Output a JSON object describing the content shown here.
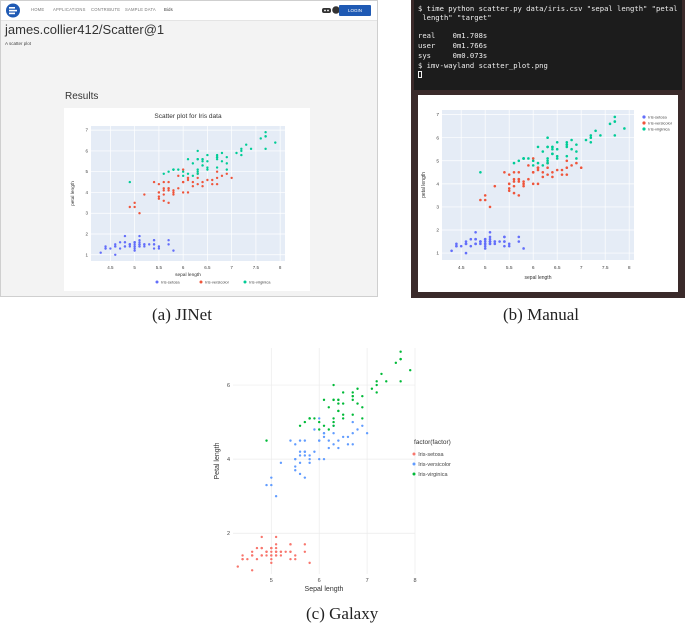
{
  "panel_a": {
    "nav": {
      "items": [
        "HOME",
        "APPLICATIONS",
        "CONTRIBUTE",
        "SAMPLE DATA",
        "Bids"
      ],
      "login_label": "LOGIN"
    },
    "title": "james.collier412/Scatter@1",
    "subtitle": "A scatter plot",
    "results_heading": "Results",
    "caption": "(a) JINet"
  },
  "panel_b": {
    "terminal_lines": [
      "$ time python scatter.py data/iris.csv \"sepal length\" \"petal",
      " length\" \"target\"",
      "",
      "real    0m1.708s",
      "user    0m1.766s",
      "sys     0m0.073s",
      "$ imv-wayland scatter_plot.png"
    ],
    "caption": "(b) Manual"
  },
  "panel_c": {
    "caption": "(c) Galaxy"
  },
  "chart_data": [
    {
      "id": "jinet",
      "type": "scatter",
      "title": "Scatter plot for Iris data",
      "xlabel": "sepal length",
      "ylabel": "petal length",
      "xlim": [
        4.1,
        8.1
      ],
      "ylim": [
        0.7,
        7.2
      ],
      "xticks": [
        4.5,
        5,
        5.5,
        6,
        6.5,
        7,
        7.5,
        8
      ],
      "yticks": [
        1,
        2,
        3,
        4,
        5,
        6,
        7
      ],
      "legend_position": "bottom",
      "series": [
        {
          "name": "Iris-setosa",
          "color": "#636efa"
        },
        {
          "name": "Iris-versicolor",
          "color": "#ef553b"
        },
        {
          "name": "Iris-virginica",
          "color": "#00cc96"
        }
      ]
    },
    {
      "id": "manual",
      "type": "scatter",
      "title": "",
      "xlabel": "sepal length",
      "ylabel": "petal length",
      "xlim": [
        4.1,
        8.1
      ],
      "ylim": [
        0.7,
        7.2
      ],
      "xticks": [
        4.5,
        5,
        5.5,
        6,
        6.5,
        7,
        7.5,
        8
      ],
      "yticks": [
        1,
        2,
        3,
        4,
        5,
        6,
        7
      ],
      "legend_position": "top-right",
      "series": [
        {
          "name": "Iris-setosa",
          "color": "#636efa"
        },
        {
          "name": "Iris-versicolor",
          "color": "#ef553b"
        },
        {
          "name": "Iris-virginica",
          "color": "#00cc96"
        }
      ]
    },
    {
      "id": "galaxy",
      "type": "scatter",
      "title": "",
      "xlabel": "Sepal length",
      "ylabel": "Petal length",
      "xlim": [
        4.2,
        8.0
      ],
      "ylim": [
        0.9,
        7.0
      ],
      "xticks": [
        5,
        6,
        7,
        8
      ],
      "yticks": [
        2,
        4,
        6
      ],
      "legend_title": "factor(factor)",
      "legend_position": "right",
      "series": [
        {
          "name": "Iris-setosa",
          "color": "#f8766d"
        },
        {
          "name": "Iris-versicolor",
          "color": "#619cff"
        },
        {
          "name": "Iris-virginica",
          "color": "#00ba38"
        }
      ]
    }
  ],
  "iris": {
    "setosa": [
      [
        5.1,
        1.4
      ],
      [
        4.9,
        1.4
      ],
      [
        4.7,
        1.3
      ],
      [
        4.6,
        1.5
      ],
      [
        5.0,
        1.4
      ],
      [
        5.4,
        1.7
      ],
      [
        4.6,
        1.4
      ],
      [
        5.0,
        1.5
      ],
      [
        4.4,
        1.4
      ],
      [
        4.9,
        1.5
      ],
      [
        5.4,
        1.5
      ],
      [
        4.8,
        1.6
      ],
      [
        4.8,
        1.4
      ],
      [
        4.3,
        1.1
      ],
      [
        5.8,
        1.2
      ],
      [
        5.7,
        1.5
      ],
      [
        5.4,
        1.3
      ],
      [
        5.1,
        1.4
      ],
      [
        5.7,
        1.7
      ],
      [
        5.1,
        1.5
      ],
      [
        5.4,
        1.7
      ],
      [
        5.1,
        1.5
      ],
      [
        4.6,
        1.0
      ],
      [
        5.1,
        1.7
      ],
      [
        4.8,
        1.9
      ],
      [
        5.0,
        1.6
      ],
      [
        5.0,
        1.6
      ],
      [
        5.2,
        1.5
      ],
      [
        5.2,
        1.4
      ],
      [
        4.7,
        1.6
      ],
      [
        4.8,
        1.6
      ],
      [
        5.4,
        1.5
      ],
      [
        5.2,
        1.5
      ],
      [
        5.5,
        1.4
      ],
      [
        4.9,
        1.5
      ],
      [
        5.0,
        1.2
      ],
      [
        5.5,
        1.3
      ],
      [
        4.9,
        1.5
      ],
      [
        4.4,
        1.3
      ],
      [
        5.1,
        1.5
      ],
      [
        5.0,
        1.3
      ],
      [
        4.5,
        1.3
      ],
      [
        4.4,
        1.3
      ],
      [
        5.0,
        1.6
      ],
      [
        5.1,
        1.9
      ],
      [
        4.8,
        1.4
      ],
      [
        5.1,
        1.6
      ],
      [
        4.6,
        1.4
      ],
      [
        5.3,
        1.5
      ],
      [
        5.0,
        1.4
      ]
    ],
    "versicolor": [
      [
        7.0,
        4.7
      ],
      [
        6.4,
        4.5
      ],
      [
        6.9,
        4.9
      ],
      [
        5.5,
        4.0
      ],
      [
        6.5,
        4.6
      ],
      [
        5.7,
        4.5
      ],
      [
        6.3,
        4.7
      ],
      [
        4.9,
        3.3
      ],
      [
        6.6,
        4.6
      ],
      [
        5.2,
        3.9
      ],
      [
        5.0,
        3.5
      ],
      [
        5.9,
        4.2
      ],
      [
        6.0,
        4.0
      ],
      [
        6.1,
        4.7
      ],
      [
        5.6,
        3.6
      ],
      [
        6.7,
        4.4
      ],
      [
        5.6,
        4.5
      ],
      [
        5.8,
        4.1
      ],
      [
        6.2,
        4.5
      ],
      [
        5.6,
        3.9
      ],
      [
        5.9,
        4.8
      ],
      [
        6.1,
        4.0
      ],
      [
        6.3,
        4.9
      ],
      [
        6.1,
        4.7
      ],
      [
        6.4,
        4.3
      ],
      [
        6.6,
        4.4
      ],
      [
        6.8,
        4.8
      ],
      [
        6.7,
        5.0
      ],
      [
        6.0,
        4.5
      ],
      [
        5.7,
        3.5
      ],
      [
        5.5,
        3.8
      ],
      [
        5.5,
        3.7
      ],
      [
        5.8,
        3.9
      ],
      [
        6.0,
        5.1
      ],
      [
        5.4,
        4.5
      ],
      [
        6.0,
        4.5
      ],
      [
        6.7,
        4.7
      ],
      [
        6.3,
        4.4
      ],
      [
        5.6,
        4.1
      ],
      [
        5.5,
        4.0
      ],
      [
        5.5,
        4.4
      ],
      [
        6.1,
        4.6
      ],
      [
        5.8,
        4.0
      ],
      [
        5.0,
        3.3
      ],
      [
        5.6,
        4.2
      ],
      [
        5.7,
        4.2
      ],
      [
        5.7,
        4.2
      ],
      [
        6.2,
        4.3
      ],
      [
        5.1,
        3.0
      ],
      [
        5.7,
        4.1
      ]
    ],
    "virginica": [
      [
        6.3,
        6.0
      ],
      [
        5.8,
        5.1
      ],
      [
        7.1,
        5.9
      ],
      [
        6.3,
        5.6
      ],
      [
        6.5,
        5.8
      ],
      [
        7.6,
        6.6
      ],
      [
        4.9,
        4.5
      ],
      [
        7.3,
        6.3
      ],
      [
        6.7,
        5.8
      ],
      [
        7.2,
        6.1
      ],
      [
        6.5,
        5.1
      ],
      [
        6.4,
        5.3
      ],
      [
        6.8,
        5.5
      ],
      [
        5.7,
        5.0
      ],
      [
        5.8,
        5.1
      ],
      [
        6.4,
        5.3
      ],
      [
        6.5,
        5.5
      ],
      [
        7.7,
        6.7
      ],
      [
        7.7,
        6.9
      ],
      [
        6.0,
        5.0
      ],
      [
        6.9,
        5.7
      ],
      [
        5.6,
        4.9
      ],
      [
        7.7,
        6.7
      ],
      [
        6.3,
        4.9
      ],
      [
        6.7,
        5.7
      ],
      [
        7.2,
        6.0
      ],
      [
        6.2,
        4.8
      ],
      [
        6.1,
        4.9
      ],
      [
        6.4,
        5.6
      ],
      [
        7.2,
        5.8
      ],
      [
        7.4,
        6.1
      ],
      [
        7.9,
        6.4
      ],
      [
        6.4,
        5.6
      ],
      [
        6.3,
        5.1
      ],
      [
        6.1,
        5.6
      ],
      [
        7.7,
        6.1
      ],
      [
        6.3,
        5.6
      ],
      [
        6.4,
        5.5
      ],
      [
        6.0,
        4.8
      ],
      [
        6.9,
        5.4
      ],
      [
        6.7,
        5.6
      ],
      [
        6.9,
        5.1
      ],
      [
        5.8,
        5.1
      ],
      [
        6.8,
        5.9
      ],
      [
        6.7,
        5.7
      ],
      [
        6.7,
        5.2
      ],
      [
        6.3,
        5.0
      ],
      [
        6.5,
        5.2
      ],
      [
        6.2,
        5.4
      ],
      [
        5.9,
        5.1
      ]
    ]
  }
}
